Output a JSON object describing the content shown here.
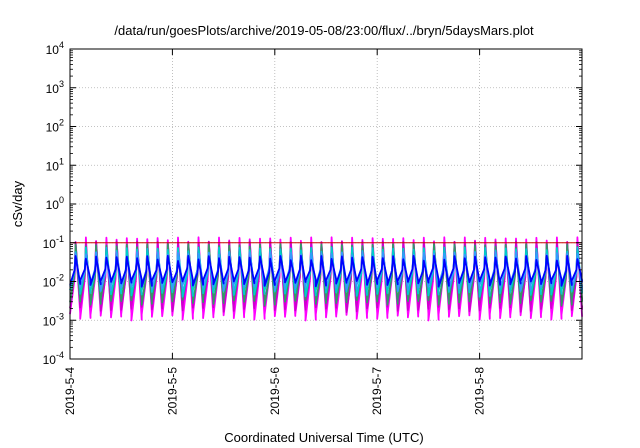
{
  "chart_data": {
    "type": "line",
    "title": "/data/run/goesPlots/archive/2019-05-08/23:00/flux/../bryn/5daysMars.plot",
    "xlabel": "Coordinated Universal Time (UTC)",
    "ylabel": "cSv/day",
    "yscale": "log",
    "ylim": [
      0.0001,
      10000
    ],
    "xlim": [
      "2019-05-04T00:00",
      "2019-05-09T00:00"
    ],
    "grid": true,
    "x_tick_labels": [
      "2019-5-4",
      "2019-5-5",
      "2019-5-6",
      "2019-5-7",
      "2019-5-8"
    ],
    "y_ticks": [
      {
        "base": "10",
        "exp": "-4"
      },
      {
        "base": "10",
        "exp": "-3"
      },
      {
        "base": "10",
        "exp": "-2"
      },
      {
        "base": "10",
        "exp": "-1"
      },
      {
        "base": "10",
        "exp": "0"
      },
      {
        "base": "10",
        "exp": "1"
      },
      {
        "base": "10",
        "exp": "2"
      },
      {
        "base": "10",
        "exp": "3"
      },
      {
        "base": "10",
        "exp": "4"
      }
    ],
    "reference_line": {
      "y": 0.1,
      "color": "#cc0000"
    },
    "pattern": {
      "description_free": true,
      "cycles_per_day": 10,
      "max_values": [
        0.12,
        0.095,
        0.08,
        0.065,
        0.05,
        0.04
      ],
      "min_values": [
        0.0012,
        0.002,
        0.003,
        0.005,
        0.007,
        0.009
      ]
    },
    "series": [
      {
        "color": "#ff00ff"
      },
      {
        "color": "#cc00cc"
      },
      {
        "color": "#339966"
      },
      {
        "color": "#00cccc"
      },
      {
        "color": "#3399ff"
      },
      {
        "color": "#0000ff"
      }
    ]
  }
}
